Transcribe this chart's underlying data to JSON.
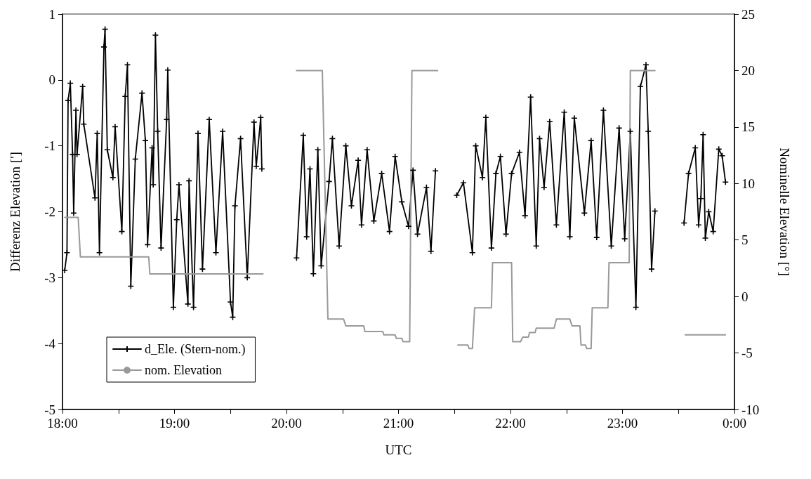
{
  "chart_data": {
    "type": "line",
    "xlabel": "UTC",
    "ylabel": "Differenz Elevation [']",
    "y2label": "Nominelle Elevation [°]",
    "xlim": [
      18,
      24
    ],
    "xticks": [
      {
        "value": 18,
        "label": "18:00"
      },
      {
        "value": 18.5,
        "label": null
      },
      {
        "value": 19,
        "label": "19:00"
      },
      {
        "value": 19.5,
        "label": null
      },
      {
        "value": 20,
        "label": "20:00"
      },
      {
        "value": 20.5,
        "label": null
      },
      {
        "value": 21,
        "label": "21:00"
      },
      {
        "value": 21.5,
        "label": null
      },
      {
        "value": 22,
        "label": "22:00"
      },
      {
        "value": 22.5,
        "label": null
      },
      {
        "value": 23,
        "label": "23:00"
      },
      {
        "value": 23.5,
        "label": null
      },
      {
        "value": 24,
        "label": "0:00"
      }
    ],
    "ylim": [
      -5,
      1
    ],
    "yticks": [
      -5,
      -4,
      -3,
      -2,
      -1,
      0,
      1
    ],
    "y2lim": [
      -10,
      25
    ],
    "y2ticks": [
      -10,
      -5,
      0,
      5,
      10,
      15,
      20,
      25
    ],
    "grid": false,
    "legend": "bottom left",
    "line_style": "solid",
    "series": [
      {
        "name": "d_Ele. (Stern-nom.)",
        "color": "#000000",
        "marker": "cross",
        "x": [
          18.02,
          18.04,
          18.05,
          18.07,
          18.09,
          18.1,
          18.12,
          18.13,
          18.18,
          18.19,
          18.29,
          18.31,
          18.33,
          18.37,
          18.38,
          18.4,
          18.45,
          18.47,
          18.53,
          18.56,
          18.58,
          18.61,
          18.65,
          18.71,
          18.74,
          18.76,
          18.8,
          18.81,
          18.83,
          18.85,
          18.88,
          18.93,
          18.94,
          18.99,
          19.02,
          19.04,
          19.12,
          19.13,
          19.17,
          19.21,
          19.25,
          19.31,
          19.37,
          19.43,
          19.5,
          19.52,
          19.54,
          19.59,
          19.65,
          19.71,
          19.73,
          19.77,
          19.78,
          19.9,
          20.09,
          20.15,
          20.18,
          20.21,
          20.24,
          20.28,
          20.31,
          20.38,
          20.41,
          20.47,
          20.53,
          20.58,
          20.64,
          20.67,
          20.72,
          20.78,
          20.85,
          20.92,
          20.97,
          21.03,
          21.09,
          21.13,
          21.17,
          21.25,
          21.29,
          21.33,
          21.4,
          21.52,
          21.58,
          21.66,
          21.69,
          21.75,
          21.78,
          21.83,
          21.87,
          21.91,
          21.96,
          22.01,
          22.08,
          22.13,
          22.18,
          22.23,
          22.26,
          22.3,
          22.35,
          22.41,
          22.48,
          22.53,
          22.57,
          22.66,
          22.72,
          22.77,
          22.83,
          22.9,
          22.97,
          23.02,
          23.07,
          23.12,
          23.16,
          23.21,
          23.23,
          23.26,
          23.29,
          23.4,
          23.55,
          23.59,
          23.65,
          23.68,
          23.7,
          23.72,
          23.74,
          23.77,
          23.81,
          23.86,
          23.89,
          23.92
        ],
        "values": [
          -2.89,
          -2.62,
          -0.31,
          -0.05,
          -1.13,
          -2.02,
          -0.46,
          -1.13,
          -0.1,
          -0.67,
          -1.79,
          -0.81,
          -2.62,
          0.5,
          0.77,
          -1.06,
          -1.48,
          -0.71,
          -2.3,
          -0.25,
          0.23,
          -3.13,
          -1.2,
          -0.2,
          -0.92,
          -2.5,
          -1.03,
          -1.59,
          0.68,
          -0.78,
          -2.55,
          -0.6,
          0.15,
          -3.45,
          -2.12,
          -1.59,
          -3.4,
          -1.53,
          -3.45,
          -0.81,
          -2.87,
          -0.6,
          -2.62,
          -0.78,
          -3.37,
          -3.6,
          -1.91,
          -0.89,
          -3.0,
          -0.64,
          -1.31,
          -0.57,
          -1.35,
          null,
          -2.7,
          -0.84,
          -2.38,
          -1.35,
          -2.94,
          -1.06,
          -2.82,
          -1.54,
          -0.89,
          -2.52,
          -1.0,
          -1.91,
          -1.22,
          -2.2,
          -1.06,
          -2.14,
          -1.42,
          -2.3,
          -1.16,
          -1.85,
          -2.22,
          -1.37,
          -2.34,
          -1.63,
          -2.6,
          -1.38,
          null,
          -1.75,
          -1.56,
          -2.62,
          -1.0,
          -1.48,
          -0.57,
          -2.55,
          -1.42,
          -1.16,
          -2.34,
          -1.42,
          -1.1,
          -2.06,
          -0.26,
          -2.52,
          -0.89,
          -1.63,
          -0.63,
          -2.2,
          -0.49,
          -2.38,
          -0.58,
          -2.02,
          -0.92,
          -2.39,
          -0.46,
          -2.52,
          -0.73,
          -2.41,
          -0.78,
          -3.45,
          -0.1,
          0.23,
          -0.78,
          -2.87,
          -1.99,
          null,
          -2.17,
          -1.42,
          -1.03,
          -2.2,
          -1.8,
          -0.83,
          -2.4,
          -2.0,
          -2.3,
          -1.05,
          -1.15,
          -1.55
        ]
      },
      {
        "name": "nom. Elevation",
        "color": "#999999",
        "marker": "none",
        "axis": "y2",
        "x": [
          18.02,
          18.14,
          18.16,
          18.77,
          18.78,
          19.79,
          19.9,
          20.09,
          20.32,
          20.37,
          20.51,
          20.53,
          20.69,
          20.7,
          20.86,
          20.87,
          20.97,
          20.98,
          21.03,
          21.04,
          21.1,
          21.12,
          21.35,
          21.4,
          21.53,
          21.62,
          21.63,
          21.66,
          21.68,
          21.83,
          21.84,
          22.01,
          22.02,
          22.09,
          22.11,
          22.16,
          22.17,
          22.22,
          22.23,
          22.39,
          22.41,
          22.53,
          22.55,
          22.62,
          22.63,
          22.67,
          22.68,
          22.72,
          22.73,
          22.87,
          22.88,
          23.06,
          23.07,
          23.29,
          23.4,
          23.56,
          23.92
        ],
        "values": [
          7,
          7,
          3.5,
          3.5,
          2,
          2,
          null,
          20,
          20,
          -2,
          -2,
          -2.6,
          -2.6,
          -3.1,
          -3.1,
          -3.4,
          -3.4,
          -3.7,
          -3.7,
          -4,
          -4,
          20,
          20,
          null,
          -4.3,
          -4.3,
          -4.6,
          -4.6,
          -1,
          -1,
          3,
          3,
          -4,
          -4,
          -3.6,
          -3.6,
          -3.2,
          -3.2,
          -2.8,
          -2.8,
          -2,
          -2,
          -2.6,
          -2.6,
          -4.3,
          -4.3,
          -4.6,
          -4.6,
          -1,
          -1,
          3,
          3,
          20,
          20,
          null,
          -3.4,
          -3.4
        ]
      }
    ]
  }
}
